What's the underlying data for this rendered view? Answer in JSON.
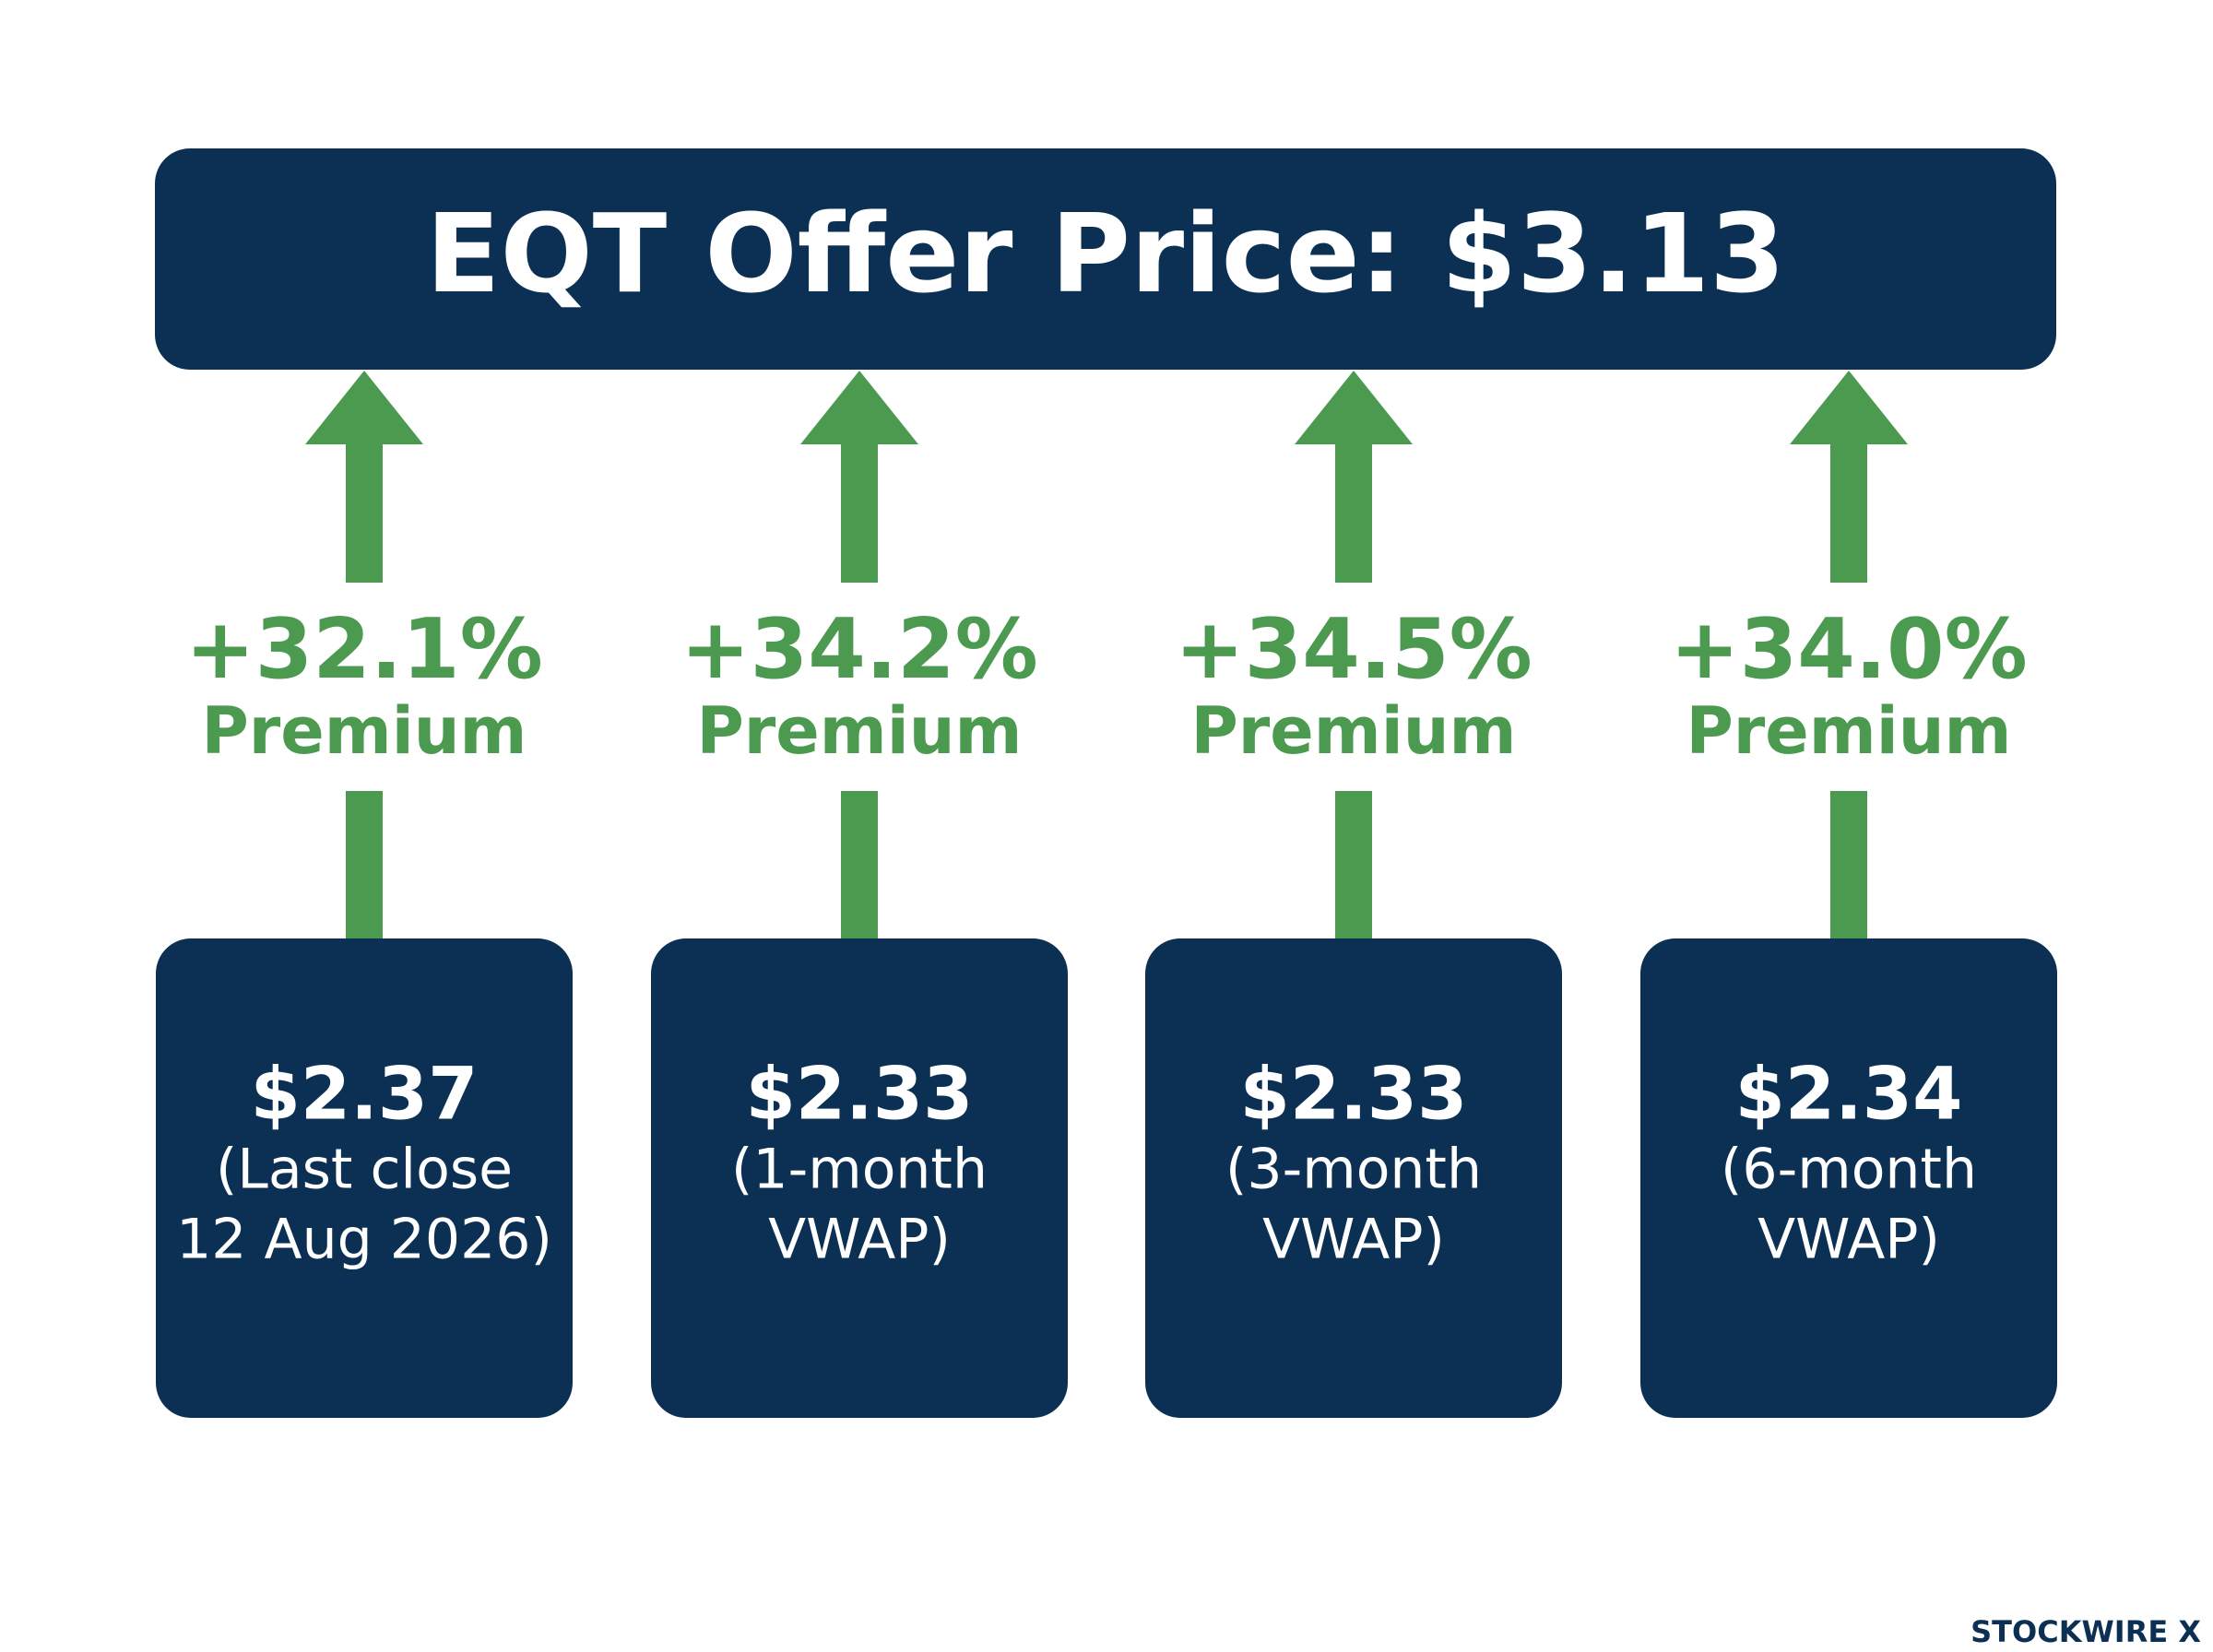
{
  "header": {
    "title": "EQT Offer Price: $3.13"
  },
  "items": [
    {
      "premium": "+32.1%",
      "premium_label": "Premium",
      "price": "$2.37",
      "description": [
        "(Last close",
        "12 Aug 2026)"
      ]
    },
    {
      "premium": "+34.2%",
      "premium_label": "Premium",
      "price": "$2.33",
      "description": [
        "(1-month",
        "VWAP)"
      ]
    },
    {
      "premium": "+34.5%",
      "premium_label": "Premium",
      "price": "$2.33",
      "description": [
        "(3-month",
        "VWAP)"
      ]
    },
    {
      "premium": "+34.0%",
      "premium_label": "Premium",
      "price": "$2.34",
      "description": [
        "(6-month",
        "VWAP)"
      ]
    }
  ],
  "footer": {
    "brand": "STOCKWIRE X"
  }
}
